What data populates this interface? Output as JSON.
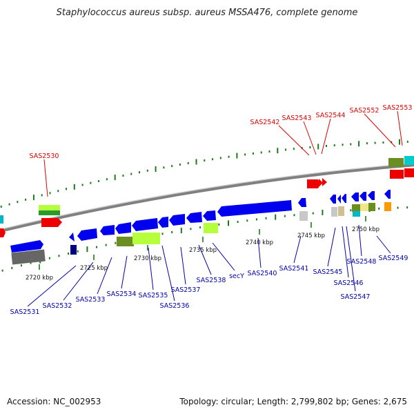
{
  "title": "Staphylococcus aureus subsp. aureus MSSA476, complete genome",
  "footer": {
    "accession": "Accession: NC_002953",
    "stats": "Topology: circular; Length: 2,799,802 bp; Genes: 2,675"
  },
  "colors": {
    "backbone": "#808080",
    "tick": "#1a7a1a",
    "cds": "#0000ee",
    "highlight_label": "#dd0000",
    "label": "#0000aa"
  },
  "scale_labels": [
    "2720 kbp",
    "2725 kbp",
    "2730 kbp",
    "2735 kbp",
    "2740 kbp",
    "2745 kbp",
    "2750 kbp"
  ],
  "highlight_genes": [
    "SAS2530",
    "SAS2542",
    "SAS2543",
    "SAS2544",
    "SAS2552",
    "SAS2553"
  ],
  "genes": [
    "SAS2531",
    "SAS2532",
    "SAS2533",
    "SAS2534",
    "SAS2535",
    "SAS2536",
    "SAS2537",
    "SAS2538",
    "secY",
    "SAS2540",
    "SAS2541",
    "SAS2545",
    "SAS2546",
    "SAS2547",
    "SAS2548",
    "SAS2549"
  ]
}
